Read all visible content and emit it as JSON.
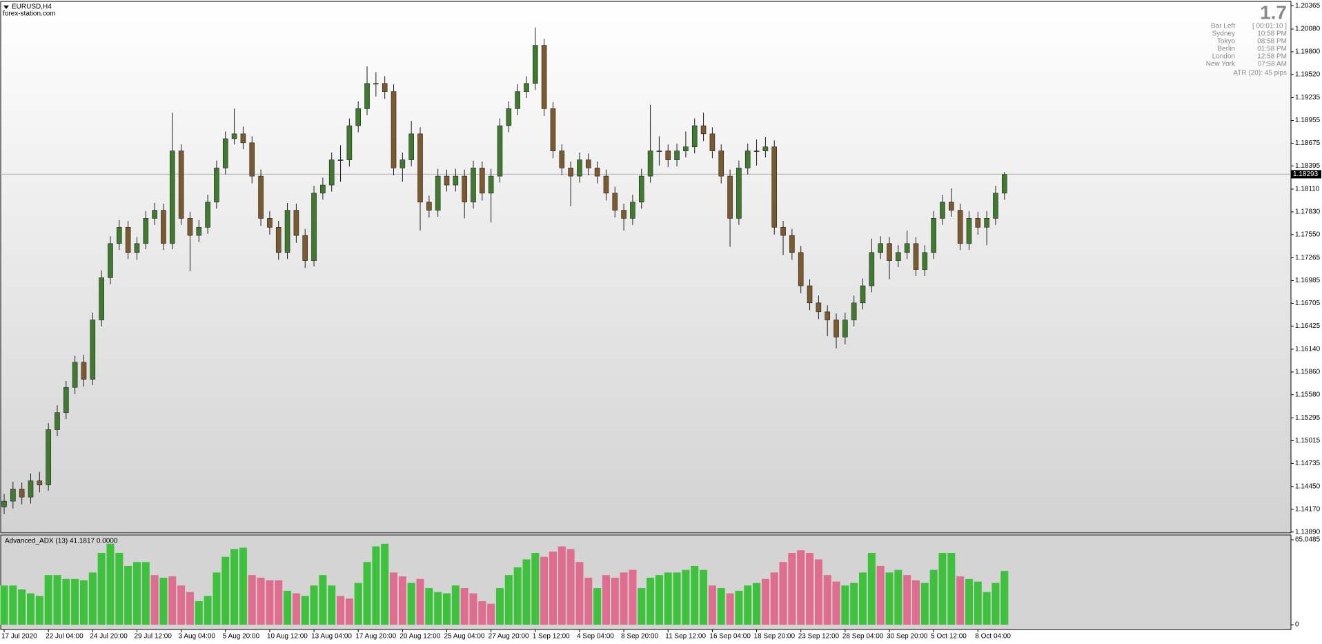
{
  "chart_data": [
    {
      "type": "candlestick",
      "title": "EURUSD,H4",
      "subtitle": "forex-station.com",
      "candles": [
        [
          1.142,
          1.1436,
          1.1411,
          1.1427
        ],
        [
          1.1427,
          1.1451,
          1.1418,
          1.1442
        ],
        [
          1.1442,
          1.145,
          1.1423,
          1.1432
        ],
        [
          1.1432,
          1.1461,
          1.1424,
          1.1452
        ],
        [
          1.1452,
          1.1463,
          1.1438,
          1.1447
        ],
        [
          1.1447,
          1.1523,
          1.144,
          1.1515
        ],
        [
          1.1515,
          1.1545,
          1.1507,
          1.1536
        ],
        [
          1.1536,
          1.1575,
          1.1528,
          1.1567
        ],
        [
          1.1567,
          1.1606,
          1.1559,
          1.1598
        ],
        [
          1.1598,
          1.1607,
          1.1568,
          1.1577
        ],
        [
          1.1577,
          1.1659,
          1.157,
          1.165
        ],
        [
          1.165,
          1.1711,
          1.1642,
          1.1702
        ],
        [
          1.1702,
          1.1753,
          1.1694,
          1.1744
        ],
        [
          1.1744,
          1.1773,
          1.1736,
          1.1764
        ],
        [
          1.1764,
          1.1772,
          1.1725,
          1.1733
        ],
        [
          1.1733,
          1.1752,
          1.1724,
          1.1744
        ],
        [
          1.1744,
          1.1784,
          1.1737,
          1.1775
        ],
        [
          1.1775,
          1.1794,
          1.1767,
          1.1785
        ],
        [
          1.1785,
          1.1793,
          1.1736,
          1.1744
        ],
        [
          1.1744,
          1.1905,
          1.1737,
          1.1858
        ],
        [
          1.1858,
          1.1866,
          1.1767,
          1.1775
        ],
        [
          1.1775,
          1.1783,
          1.171,
          1.1754
        ],
        [
          1.1754,
          1.1773,
          1.1746,
          1.1764
        ],
        [
          1.1764,
          1.1804,
          1.1756,
          1.1795
        ],
        [
          1.1795,
          1.1846,
          1.1787,
          1.1837
        ],
        [
          1.1837,
          1.1882,
          1.1829,
          1.1873
        ],
        [
          1.1873,
          1.191,
          1.1866,
          1.1879
        ],
        [
          1.1879,
          1.1888,
          1.186,
          1.1868
        ],
        [
          1.1868,
          1.1876,
          1.1818,
          1.1827
        ],
        [
          1.1827,
          1.1835,
          1.1766,
          1.1775
        ],
        [
          1.1775,
          1.1784,
          1.1755,
          1.1764
        ],
        [
          1.1764,
          1.1772,
          1.1724,
          1.1733
        ],
        [
          1.1733,
          1.1794,
          1.1725,
          1.1785
        ],
        [
          1.1785,
          1.1793,
          1.1745,
          1.1754
        ],
        [
          1.1754,
          1.1762,
          1.1714,
          1.1723
        ],
        [
          1.1723,
          1.1815,
          1.1716,
          1.1806
        ],
        [
          1.1806,
          1.1825,
          1.1798,
          1.1816
        ],
        [
          1.1816,
          1.1856,
          1.1808,
          1.1847
        ],
        [
          1.1847,
          1.1865,
          1.182,
          1.1847
        ],
        [
          1.1847,
          1.1898,
          1.1839,
          1.1889
        ],
        [
          1.1889,
          1.1919,
          1.1881,
          1.191
        ],
        [
          1.191,
          1.1962,
          1.1902,
          1.1941
        ],
        [
          1.1941,
          1.1955,
          1.1925,
          1.1941
        ],
        [
          1.1941,
          1.195,
          1.1922,
          1.1931
        ],
        [
          1.1931,
          1.194,
          1.1828,
          1.1837
        ],
        [
          1.1837,
          1.1856,
          1.182,
          1.1847
        ],
        [
          1.1847,
          1.1895,
          1.1839,
          1.1879
        ],
        [
          1.1879,
          1.1887,
          1.176,
          1.1795
        ],
        [
          1.1795,
          1.1803,
          1.1776,
          1.1785
        ],
        [
          1.1785,
          1.1836,
          1.1777,
          1.1827
        ],
        [
          1.1827,
          1.1835,
          1.1808,
          1.1816
        ],
        [
          1.1816,
          1.1836,
          1.1808,
          1.1827
        ],
        [
          1.1827,
          1.1835,
          1.1775,
          1.1795
        ],
        [
          1.1795,
          1.1846,
          1.1787,
          1.1837
        ],
        [
          1.1837,
          1.1845,
          1.1797,
          1.1806
        ],
        [
          1.1806,
          1.1836,
          1.177,
          1.1827
        ],
        [
          1.1827,
          1.1898,
          1.1819,
          1.1889
        ],
        [
          1.1889,
          1.1919,
          1.1881,
          1.191
        ],
        [
          1.191,
          1.194,
          1.1902,
          1.1931
        ],
        [
          1.1931,
          1.195,
          1.1923,
          1.1941
        ],
        [
          1.1941,
          1.201,
          1.1933,
          1.1988
        ],
        [
          1.1988,
          1.1996,
          1.1901,
          1.191
        ],
        [
          1.191,
          1.1918,
          1.1849,
          1.1858
        ],
        [
          1.1858,
          1.1866,
          1.1828,
          1.1837
        ],
        [
          1.1837,
          1.1845,
          1.179,
          1.1827
        ],
        [
          1.1827,
          1.1856,
          1.1819,
          1.1847
        ],
        [
          1.1847,
          1.1855,
          1.1828,
          1.1837
        ],
        [
          1.1837,
          1.1845,
          1.1818,
          1.1827
        ],
        [
          1.1827,
          1.1835,
          1.1797,
          1.1806
        ],
        [
          1.1806,
          1.1814,
          1.1776,
          1.1785
        ],
        [
          1.1785,
          1.1793,
          1.176,
          1.1775
        ],
        [
          1.1775,
          1.1804,
          1.1767,
          1.1795
        ],
        [
          1.1795,
          1.1836,
          1.1787,
          1.1827
        ],
        [
          1.1827,
          1.1915,
          1.1819,
          1.1858
        ],
        [
          1.1858,
          1.1876,
          1.184,
          1.1858
        ],
        [
          1.1858,
          1.1866,
          1.1838,
          1.1847
        ],
        [
          1.1847,
          1.1867,
          1.1839,
          1.1858
        ],
        [
          1.1858,
          1.1882,
          1.185,
          1.1863
        ],
        [
          1.1863,
          1.1898,
          1.1855,
          1.1889
        ],
        [
          1.1889,
          1.1905,
          1.187,
          1.1879
        ],
        [
          1.1879,
          1.1887,
          1.1849,
          1.1858
        ],
        [
          1.1858,
          1.1866,
          1.1818,
          1.1827
        ],
        [
          1.1827,
          1.1835,
          1.174,
          1.1775
        ],
        [
          1.1775,
          1.1846,
          1.1767,
          1.1837
        ],
        [
          1.1837,
          1.1867,
          1.1829,
          1.1858
        ],
        [
          1.1858,
          1.1872,
          1.184,
          1.1858
        ],
        [
          1.1858,
          1.1875,
          1.185,
          1.1863
        ],
        [
          1.1863,
          1.1871,
          1.1755,
          1.1764
        ],
        [
          1.1764,
          1.1772,
          1.173,
          1.1754
        ],
        [
          1.1754,
          1.1762,
          1.1724,
          1.1733
        ],
        [
          1.1733,
          1.1741,
          1.1683,
          1.1692
        ],
        [
          1.1692,
          1.17,
          1.1662,
          1.1671
        ],
        [
          1.1671,
          1.168,
          1.1651,
          1.166
        ],
        [
          1.166,
          1.1668,
          1.163,
          1.165
        ],
        [
          1.165,
          1.1658,
          1.1615,
          1.1629
        ],
        [
          1.1629,
          1.1659,
          1.162,
          1.165
        ],
        [
          1.165,
          1.168,
          1.1642,
          1.1671
        ],
        [
          1.1671,
          1.1701,
          1.1663,
          1.1692
        ],
        [
          1.1692,
          1.175,
          1.1684,
          1.1733
        ],
        [
          1.1733,
          1.1753,
          1.1725,
          1.1744
        ],
        [
          1.1744,
          1.1752,
          1.17,
          1.1723
        ],
        [
          1.1723,
          1.1742,
          1.1715,
          1.1733
        ],
        [
          1.1733,
          1.176,
          1.1725,
          1.1744
        ],
        [
          1.1744,
          1.1752,
          1.1704,
          1.1712
        ],
        [
          1.1712,
          1.1742,
          1.1704,
          1.1733
        ],
        [
          1.1733,
          1.1784,
          1.1725,
          1.1775
        ],
        [
          1.1775,
          1.1804,
          1.1767,
          1.1795
        ],
        [
          1.1795,
          1.1812,
          1.1777,
          1.1785
        ],
        [
          1.1785,
          1.1793,
          1.1736,
          1.1744
        ],
        [
          1.1744,
          1.1784,
          1.1736,
          1.1775
        ],
        [
          1.1775,
          1.1783,
          1.1755,
          1.1764
        ],
        [
          1.1764,
          1.1784,
          1.1742,
          1.1775
        ],
        [
          1.1775,
          1.1815,
          1.1767,
          1.1806
        ],
        [
          1.1806,
          1.1832,
          1.1798,
          1.1829
        ]
      ],
      "up_color": "#3f7a2e",
      "down_color": "#7a5a2e",
      "wick_color": "#1a1a1a",
      "current_price": 1.18293,
      "ylim": [
        1.1388,
        1.2042
      ],
      "yticks": [
        1.20365,
        {
          "value": 1.2008,
          "label": "1.20080"
        },
        {
          "value": 1.198,
          "label": "1.19800"
        },
        {
          "value": 1.1952,
          "label": "1.19520"
        },
        1.19235,
        1.18955,
        1.18675,
        1.18395,
        {
          "value": 1.1811,
          "label": "1.18110"
        },
        {
          "value": 1.1783,
          "label": "1.17830"
        },
        {
          "value": 1.1755,
          "label": "1.17550"
        },
        1.17265,
        1.16985,
        1.16705,
        1.16425,
        {
          "value": 1.1614,
          "label": "1.16140"
        },
        {
          "value": 1.1586,
          "label": "1.15860"
        },
        {
          "value": 1.1558,
          "label": "1.15580"
        },
        1.15295,
        1.15015,
        1.14735,
        {
          "value": 1.1445,
          "label": "1.14450"
        },
        {
          "value": 1.1417,
          "label": "1.14170"
        },
        {
          "value": 1.1389,
          "label": "1.13890"
        }
      ],
      "xticks": [
        {
          "value": 0,
          "label": "17 Jul 2020"
        },
        {
          "value": 5,
          "label": "22 Jul 04:00"
        },
        {
          "value": 10,
          "label": "24 Jul 20:00"
        },
        {
          "value": 15,
          "label": "29 Jul 12:00"
        },
        {
          "value": 20,
          "label": "3 Aug 04:00"
        },
        {
          "value": 25,
          "label": "5 Aug 20:00"
        },
        {
          "value": 30,
          "label": "10 Aug 12:00"
        },
        {
          "value": 35,
          "label": "13 Aug 04:00"
        },
        {
          "value": 40,
          "label": "17 Aug 20:00"
        },
        {
          "value": 45,
          "label": "20 Aug 12:00"
        },
        {
          "value": 50,
          "label": "25 Aug 04:00"
        },
        {
          "value": 55,
          "label": "27 Aug 20:00"
        },
        {
          "value": 60,
          "label": "1 Sep 12:00"
        },
        {
          "value": 65,
          "label": "4 Sep 04:00"
        },
        {
          "value": 70,
          "label": "8 Sep 20:00"
        },
        {
          "value": 75,
          "label": "11 Sep 12:00"
        },
        {
          "value": 80,
          "label": "16 Sep 04:00"
        },
        {
          "value": 85,
          "label": "18 Sep 20:00"
        },
        {
          "value": 90,
          "label": "23 Sep 12:00"
        },
        {
          "value": 95,
          "label": "28 Sep 04:00"
        },
        {
          "value": 100,
          "label": "30 Sep 20:00"
        },
        {
          "value": 105,
          "label": "5 Oct 12:00"
        },
        {
          "value": 110,
          "label": "8 Oct 04:00"
        }
      ]
    },
    {
      "type": "bar",
      "title": "Advanced_ADX (13) 41.1817 0.0000",
      "values": [
        30,
        30,
        27,
        24,
        22,
        38,
        38,
        35,
        35,
        34,
        40,
        55,
        62,
        55,
        45,
        48,
        48,
        38,
        36,
        37,
        30,
        25,
        18,
        22,
        40,
        52,
        58,
        59,
        38,
        36,
        34,
        34,
        26,
        24,
        22,
        30,
        38,
        30,
        22,
        20,
        32,
        48,
        60,
        62,
        40,
        37,
        32,
        35,
        28,
        25,
        24,
        30,
        28,
        24,
        18,
        16,
        28,
        38,
        44,
        50,
        55,
        52,
        56,
        60,
        58,
        48,
        36,
        28,
        38,
        36,
        40,
        42,
        28,
        36,
        38,
        40,
        40,
        42,
        45,
        42,
        30,
        28,
        24,
        26,
        30,
        32,
        35,
        40,
        48,
        55,
        57,
        55,
        50,
        38,
        33,
        30,
        32,
        40,
        55,
        45,
        40,
        42,
        38,
        34,
        32,
        42,
        55,
        55,
        37,
        35,
        33,
        25,
        32,
        41.1817
      ],
      "colors": [
        "G",
        "G",
        "G",
        "G",
        "G",
        "G",
        "G",
        "G",
        "G",
        "G",
        "G",
        "G",
        "G",
        "G",
        "G",
        "G",
        "G",
        "P",
        "G",
        "P",
        "P",
        "P",
        "G",
        "G",
        "G",
        "G",
        "G",
        "G",
        "P",
        "P",
        "P",
        "P",
        "G",
        "P",
        "G",
        "G",
        "G",
        "G",
        "P",
        "P",
        "G",
        "G",
        "G",
        "G",
        "P",
        "P",
        "G",
        "P",
        "G",
        "G",
        "G",
        "G",
        "P",
        "P",
        "P",
        "P",
        "G",
        "G",
        "G",
        "G",
        "G",
        "P",
        "P",
        "P",
        "P",
        "P",
        "P",
        "G",
        "P",
        "P",
        "P",
        "P",
        "G",
        "G",
        "G",
        "G",
        "G",
        "G",
        "G",
        "G",
        "P",
        "G",
        "P",
        "G",
        "G",
        "G",
        "P",
        "P",
        "P",
        "P",
        "P",
        "P",
        "P",
        "P",
        "P",
        "G",
        "G",
        "G",
        "G",
        "P",
        "G",
        "G",
        "P",
        "P",
        "G",
        "G",
        "G",
        "G",
        "P",
        "G",
        "G",
        "G",
        "G",
        "G"
      ],
      "color_key": {
        "G": "#3ec23e",
        "P": "#de6d90"
      },
      "ylim": [
        0,
        65.0485
      ],
      "yticks": [
        0,
        65.0485
      ]
    }
  ],
  "info_panel": {
    "big": "1.7",
    "rows": [
      [
        "Bar Left",
        "[ 00:01:10 ]"
      ],
      [
        "Sydney",
        "10:58 PM"
      ],
      [
        "Tokyo",
        "08:58 PM"
      ],
      [
        "Berlin",
        "01:58 PM"
      ],
      [
        "London",
        "12:58 PM"
      ],
      [
        "New York",
        "07:58 AM"
      ]
    ],
    "atr": "ATR (20): 45 pips"
  }
}
